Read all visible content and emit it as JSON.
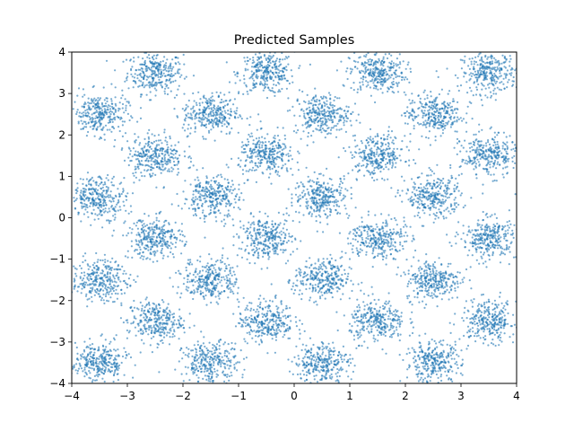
{
  "chart_data": {
    "type": "scatter",
    "title": "Predicted Samples",
    "xlabel": "",
    "ylabel": "",
    "xlim": [
      -4,
      4
    ],
    "ylim": [
      -4,
      4
    ],
    "x_ticks": [
      -4,
      -3,
      -2,
      -1,
      0,
      1,
      2,
      3,
      4
    ],
    "y_ticks": [
      -4,
      -3,
      -2,
      -1,
      0,
      1,
      2,
      3,
      4
    ],
    "x_tick_labels": [
      "−4",
      "−3",
      "−2",
      "−1",
      "0",
      "1",
      "2",
      "3",
      "4"
    ],
    "y_tick_labels": [
      "−4",
      "−3",
      "−2",
      "−1",
      "0",
      "1",
      "2",
      "3",
      "4"
    ],
    "grid": false,
    "legend": "none",
    "marker_color": "#1f77b4",
    "marker_alpha": 0.6,
    "series": [
      {
        "cluster_centers": [
          [
            -2.5,
            3.5
          ],
          [
            -0.5,
            3.5
          ],
          [
            1.5,
            3.5
          ],
          [
            3.5,
            3.5
          ],
          [
            -3.5,
            2.5
          ],
          [
            -1.5,
            2.5
          ],
          [
            0.5,
            2.5
          ],
          [
            2.5,
            2.5
          ],
          [
            -2.5,
            1.5
          ],
          [
            -0.5,
            1.5
          ],
          [
            1.5,
            1.5
          ],
          [
            3.5,
            1.5
          ],
          [
            -3.5,
            0.5
          ],
          [
            -1.5,
            0.5
          ],
          [
            0.5,
            0.5
          ],
          [
            2.5,
            0.5
          ],
          [
            -2.5,
            -0.5
          ],
          [
            -0.5,
            -0.5
          ],
          [
            1.5,
            -0.5
          ],
          [
            3.5,
            -0.5
          ],
          [
            -3.5,
            -1.5
          ],
          [
            -1.5,
            -1.5
          ],
          [
            0.5,
            -1.5
          ],
          [
            2.5,
            -1.5
          ],
          [
            -2.5,
            -2.5
          ],
          [
            -0.5,
            -2.5
          ],
          [
            1.5,
            -2.5
          ],
          [
            3.5,
            -2.5
          ],
          [
            -3.5,
            -3.5
          ],
          [
            -1.5,
            -3.5
          ],
          [
            0.5,
            -3.5
          ],
          [
            2.5,
            -3.5
          ]
        ],
        "cluster_spread": 0.25,
        "points_per_cluster": 300
      }
    ]
  }
}
